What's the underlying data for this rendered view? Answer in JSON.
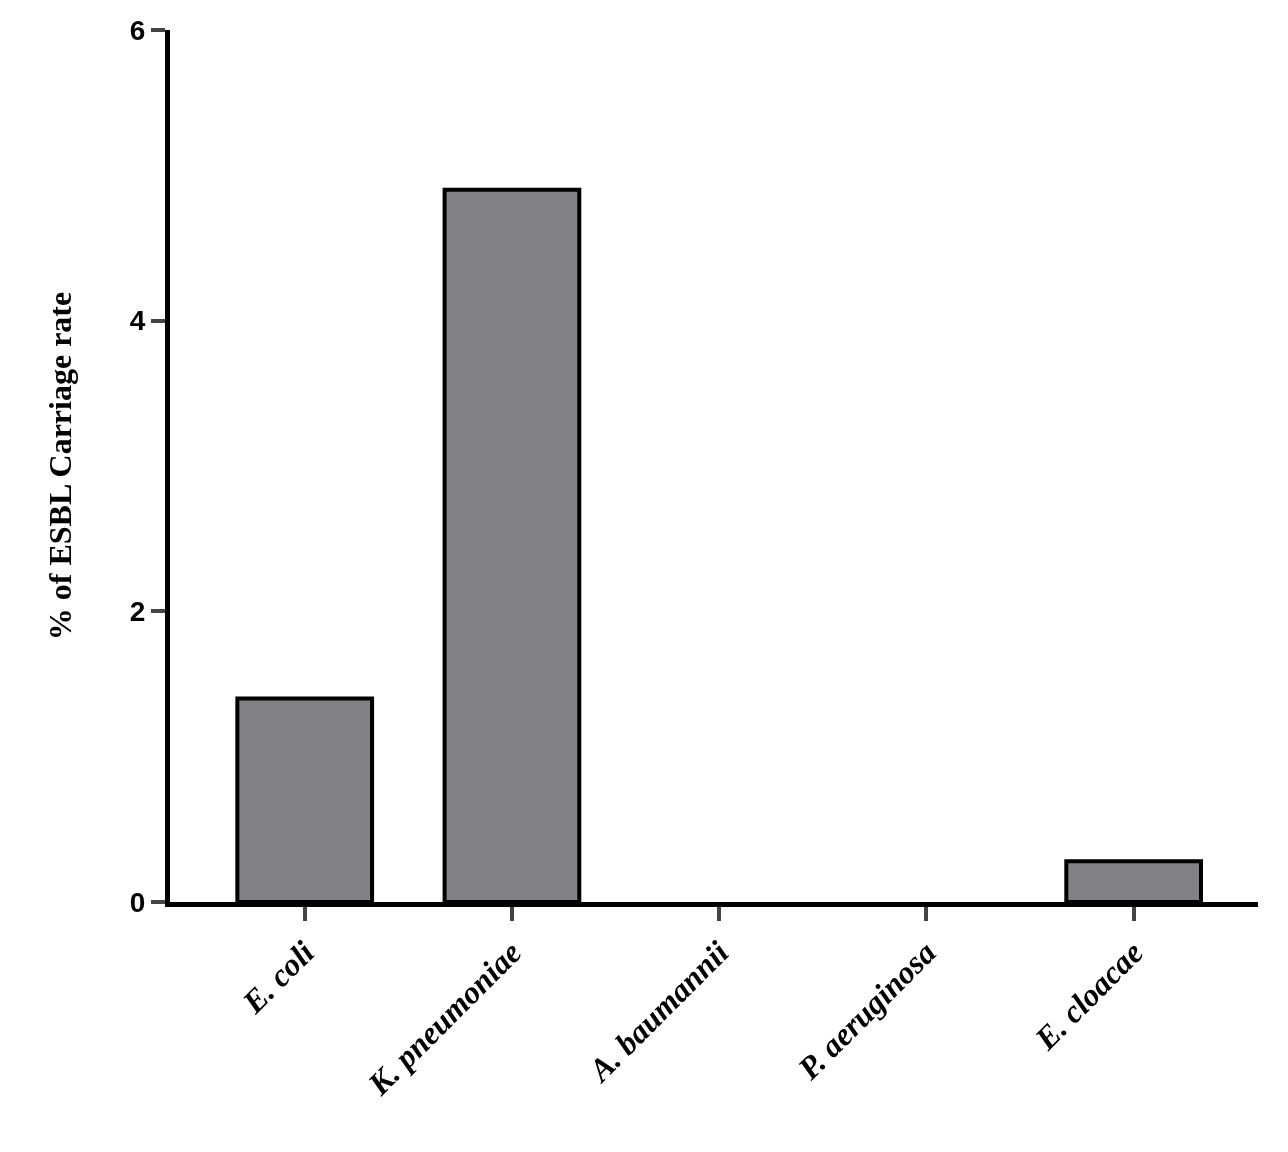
{
  "chart_data": {
    "type": "bar",
    "ylabel": "% of ESBL Carriage rate",
    "categories": [
      "E. coli",
      "K. pneumoniae",
      "A. baumannii",
      "P. aeruginosa",
      "E. cloacae"
    ],
    "values": [
      1.4,
      4.9,
      0,
      0,
      0.28
    ],
    "color": "#818085",
    "ylim": [
      0,
      6
    ],
    "yticks": [
      0,
      2,
      4,
      6
    ],
    "legend": false
  }
}
